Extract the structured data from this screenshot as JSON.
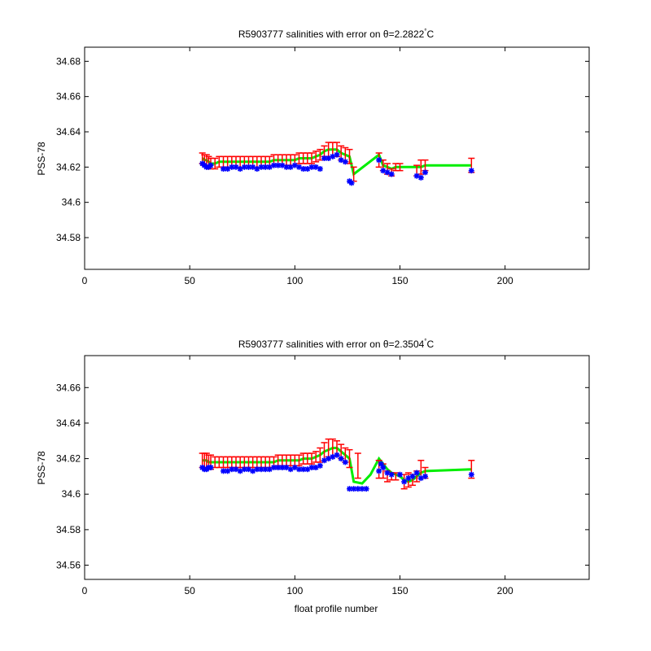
{
  "colors": {
    "mapped": "#00ee00",
    "float": "#0000ff",
    "error": "#ff0000",
    "axis": "#000000"
  },
  "chart_data": [
    {
      "type": "scatter",
      "title": "R5903777 salinities with error on θ=2.2822",
      "title_degree": "°",
      "title_unit": "C",
      "xlabel": "",
      "ylabel": "PSS-78",
      "xlim": [
        0,
        240
      ],
      "ylim": [
        34.562,
        34.688
      ],
      "xticks": [
        "0",
        "50",
        "100",
        "150",
        "200"
      ],
      "yticks": [
        "34.58",
        "34.6",
        "34.62",
        "34.64",
        "34.66",
        "34.68"
      ],
      "grid": false,
      "series": [
        {
          "marker": "line",
          "x": [
            56,
            57,
            58,
            59,
            60,
            62,
            64,
            66,
            68,
            70,
            72,
            74,
            76,
            78,
            80,
            82,
            84,
            86,
            88,
            90,
            92,
            94,
            96,
            98,
            100,
            102,
            104,
            106,
            108,
            110,
            112,
            114,
            116,
            118,
            120,
            122,
            124,
            126,
            128,
            140,
            142,
            144,
            146,
            148,
            150,
            158,
            160,
            162,
            184
          ],
          "y": [
            34.625,
            34.624,
            34.624,
            34.623,
            34.622,
            34.622,
            34.623,
            34.623,
            34.623,
            34.623,
            34.623,
            34.623,
            34.623,
            34.623,
            34.623,
            34.623,
            34.623,
            34.623,
            34.623,
            34.624,
            34.624,
            34.624,
            34.624,
            34.624,
            34.624,
            34.625,
            34.625,
            34.625,
            34.625,
            34.626,
            34.627,
            34.629,
            34.63,
            34.63,
            34.63,
            34.628,
            34.627,
            34.626,
            34.616,
            34.627,
            34.621,
            34.62,
            34.619,
            34.62,
            34.62,
            34.62,
            34.62,
            34.621,
            34.621
          ]
        },
        {
          "marker": "errorbar",
          "x": [
            56,
            57,
            58,
            59,
            60,
            62,
            64,
            66,
            68,
            70,
            72,
            74,
            76,
            78,
            80,
            82,
            84,
            86,
            88,
            90,
            92,
            94,
            96,
            98,
            100,
            102,
            104,
            106,
            108,
            110,
            112,
            114,
            116,
            118,
            120,
            122,
            124,
            126,
            128,
            140,
            142,
            144,
            146,
            148,
            150,
            158,
            160,
            162,
            184
          ],
          "y": [
            34.625,
            34.624,
            34.624,
            34.623,
            34.622,
            34.622,
            34.623,
            34.623,
            34.623,
            34.623,
            34.623,
            34.623,
            34.623,
            34.623,
            34.623,
            34.623,
            34.623,
            34.623,
            34.623,
            34.624,
            34.624,
            34.624,
            34.624,
            34.624,
            34.624,
            34.625,
            34.625,
            34.625,
            34.625,
            34.626,
            34.627,
            34.629,
            34.63,
            34.63,
            34.63,
            34.628,
            34.627,
            34.626,
            34.616,
            34.624,
            34.621,
            34.619,
            34.617,
            34.62,
            34.62,
            34.618,
            34.62,
            34.621,
            34.621
          ],
          "err": [
            0.003,
            0.003,
            0.003,
            0.003,
            0.003,
            0.003,
            0.003,
            0.003,
            0.003,
            0.003,
            0.003,
            0.003,
            0.003,
            0.003,
            0.003,
            0.003,
            0.003,
            0.003,
            0.003,
            0.003,
            0.003,
            0.003,
            0.003,
            0.003,
            0.003,
            0.003,
            0.003,
            0.003,
            0.003,
            0.003,
            0.003,
            0.003,
            0.004,
            0.004,
            0.004,
            0.004,
            0.004,
            0.004,
            0.004,
            0.004,
            0.003,
            0.003,
            0.002,
            0.002,
            0.002,
            0.003,
            0.004,
            0.003,
            0.004
          ]
        },
        {
          "marker": "star",
          "x": [
            56,
            57,
            58,
            59,
            60,
            66,
            68,
            70,
            72,
            74,
            76,
            78,
            80,
            82,
            84,
            86,
            88,
            90,
            92,
            94,
            96,
            98,
            100,
            102,
            104,
            106,
            108,
            110,
            112,
            114,
            116,
            118,
            120,
            122,
            124,
            126,
            127,
            140,
            142,
            144,
            146,
            158,
            160,
            162,
            184
          ],
          "y": [
            34.622,
            34.621,
            34.62,
            34.62,
            34.621,
            34.619,
            34.619,
            34.62,
            34.62,
            34.619,
            34.62,
            34.62,
            34.62,
            34.619,
            34.62,
            34.62,
            34.62,
            34.621,
            34.621,
            34.621,
            34.62,
            34.62,
            34.621,
            34.62,
            34.619,
            34.619,
            34.62,
            34.62,
            34.619,
            34.625,
            34.625,
            34.626,
            34.627,
            34.624,
            34.623,
            34.612,
            34.611,
            34.624,
            34.618,
            34.617,
            34.616,
            34.615,
            34.614,
            34.617,
            34.618
          ]
        }
      ]
    },
    {
      "type": "scatter",
      "title": "R5903777 salinities with error on θ=2.3504",
      "title_degree": "°",
      "title_unit": "C",
      "xlabel": "float profile number",
      "ylabel": "PSS-78",
      "xlim": [
        0,
        240
      ],
      "ylim": [
        34.552,
        34.678
      ],
      "xticks": [
        "0",
        "50",
        "100",
        "150",
        "200"
      ],
      "yticks": [
        "34.56",
        "34.58",
        "34.6",
        "34.62",
        "34.64",
        "34.66"
      ],
      "grid": false,
      "series": [
        {
          "marker": "line",
          "x": [
            56,
            57,
            58,
            59,
            60,
            62,
            64,
            66,
            68,
            70,
            72,
            74,
            76,
            78,
            80,
            82,
            84,
            86,
            88,
            90,
            92,
            94,
            96,
            98,
            100,
            102,
            104,
            106,
            108,
            110,
            112,
            114,
            116,
            118,
            120,
            122,
            124,
            126,
            128,
            132,
            136,
            140,
            142,
            144,
            146,
            150,
            152,
            154,
            156,
            158,
            160,
            162,
            184
          ],
          "y": [
            34.619,
            34.619,
            34.619,
            34.618,
            34.618,
            34.618,
            34.618,
            34.618,
            34.618,
            34.618,
            34.618,
            34.618,
            34.618,
            34.618,
            34.618,
            34.618,
            34.618,
            34.618,
            34.618,
            34.618,
            34.619,
            34.619,
            34.619,
            34.619,
            34.619,
            34.619,
            34.62,
            34.62,
            34.62,
            34.621,
            34.622,
            34.624,
            34.625,
            34.626,
            34.626,
            34.624,
            34.622,
            34.62,
            34.607,
            34.606,
            34.611,
            34.62,
            34.617,
            34.614,
            34.612,
            34.61,
            34.608,
            34.607,
            34.608,
            34.61,
            34.612,
            34.613,
            34.614
          ]
        },
        {
          "marker": "errorbar",
          "x": [
            56,
            57,
            58,
            59,
            60,
            62,
            64,
            66,
            68,
            70,
            72,
            74,
            76,
            78,
            80,
            82,
            84,
            86,
            88,
            90,
            92,
            94,
            96,
            98,
            100,
            102,
            104,
            106,
            108,
            110,
            112,
            114,
            116,
            118,
            120,
            122,
            124,
            126,
            130,
            140,
            142,
            144,
            146,
            148,
            152,
            154,
            156,
            158,
            160,
            162,
            184
          ],
          "y": [
            34.619,
            34.619,
            34.619,
            34.618,
            34.618,
            34.618,
            34.618,
            34.618,
            34.618,
            34.618,
            34.618,
            34.618,
            34.618,
            34.618,
            34.618,
            34.618,
            34.618,
            34.618,
            34.618,
            34.618,
            34.619,
            34.619,
            34.619,
            34.619,
            34.619,
            34.619,
            34.62,
            34.62,
            34.62,
            34.621,
            34.622,
            34.624,
            34.626,
            34.626,
            34.626,
            34.624,
            34.622,
            34.62,
            34.616,
            34.614,
            34.613,
            34.61,
            34.61,
            34.61,
            34.607,
            34.608,
            34.608,
            34.61,
            34.614,
            34.612,
            34.614
          ],
          "err": [
            0.004,
            0.004,
            0.004,
            0.004,
            0.004,
            0.003,
            0.003,
            0.003,
            0.003,
            0.003,
            0.003,
            0.003,
            0.003,
            0.003,
            0.003,
            0.003,
            0.003,
            0.003,
            0.003,
            0.003,
            0.003,
            0.003,
            0.003,
            0.003,
            0.003,
            0.003,
            0.003,
            0.003,
            0.003,
            0.003,
            0.004,
            0.005,
            0.005,
            0.005,
            0.004,
            0.004,
            0.004,
            0.005,
            0.007,
            0.005,
            0.004,
            0.003,
            0.002,
            0.002,
            0.004,
            0.004,
            0.003,
            0.003,
            0.005,
            0.003,
            0.005
          ]
        },
        {
          "marker": "star",
          "x": [
            56,
            57,
            58,
            59,
            60,
            66,
            68,
            70,
            72,
            74,
            76,
            78,
            80,
            82,
            84,
            86,
            88,
            90,
            92,
            94,
            96,
            98,
            100,
            102,
            104,
            106,
            108,
            110,
            112,
            114,
            116,
            118,
            120,
            122,
            124,
            126,
            128,
            130,
            132,
            134,
            140,
            141,
            142,
            144,
            146,
            150,
            152,
            154,
            156,
            158,
            160,
            162,
            184
          ],
          "y": [
            34.615,
            34.614,
            34.614,
            34.615,
            34.615,
            34.613,
            34.613,
            34.614,
            34.614,
            34.613,
            34.614,
            34.614,
            34.613,
            34.614,
            34.614,
            34.614,
            34.614,
            34.615,
            34.615,
            34.615,
            34.615,
            34.614,
            34.615,
            34.614,
            34.614,
            34.614,
            34.615,
            34.615,
            34.616,
            34.619,
            34.62,
            34.621,
            34.622,
            34.62,
            34.618,
            34.603,
            34.603,
            34.603,
            34.603,
            34.603,
            34.613,
            34.617,
            34.615,
            34.612,
            34.611,
            34.611,
            34.607,
            34.609,
            34.61,
            34.612,
            34.609,
            34.61,
            34.611
          ]
        }
      ]
    }
  ]
}
